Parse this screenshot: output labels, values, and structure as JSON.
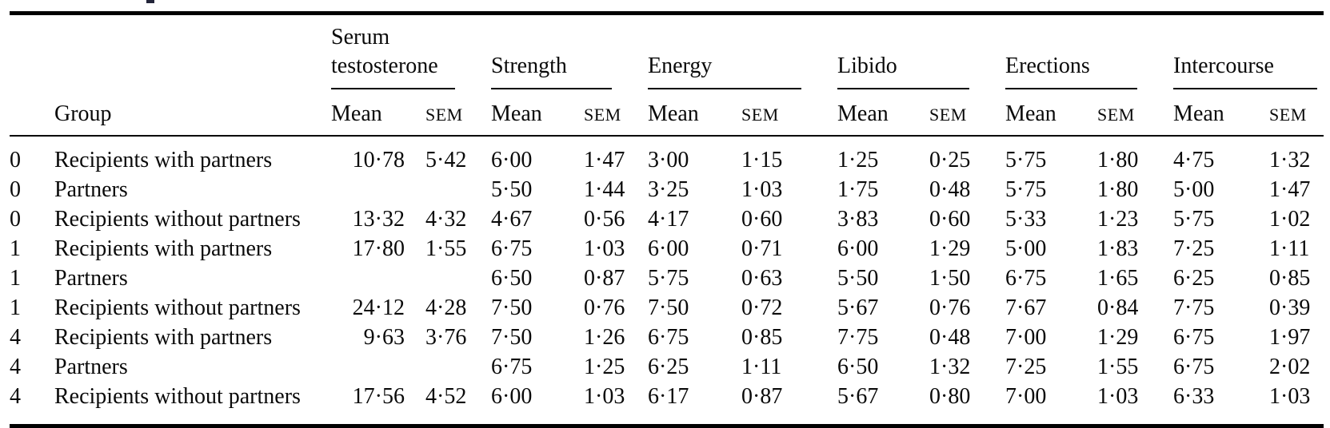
{
  "table": {
    "group_col": "Group",
    "sub": {
      "mean": "Mean",
      "sem": "SEM"
    },
    "groups": [
      {
        "label": "Serum testosterone"
      },
      {
        "label": "Strength"
      },
      {
        "label": "Energy"
      },
      {
        "label": "Libido"
      },
      {
        "label": "Erections"
      },
      {
        "label": "Intercourse"
      }
    ],
    "rows": [
      {
        "code": "0",
        "label": "Recipients with partners",
        "values": [
          "10·78",
          "5·42",
          "6·00",
          "1·47",
          "3·00",
          "1·15",
          "1·25",
          "0·25",
          "5·75",
          "1·80",
          "4·75",
          "1·32"
        ]
      },
      {
        "code": "0",
        "label": "Partners",
        "values": [
          "",
          "",
          "5·50",
          "1·44",
          "3·25",
          "1·03",
          "1·75",
          "0·48",
          "5·75",
          "1·80",
          "5·00",
          "1·47"
        ]
      },
      {
        "code": "0",
        "label": "Recipients without partners",
        "values": [
          "13·32",
          "4·32",
          "4·67",
          "0·56",
          "4·17",
          "0·60",
          "3·83",
          "0·60",
          "5·33",
          "1·23",
          "5·75",
          "1·02"
        ]
      },
      {
        "code": "1",
        "label": "Recipients with partners",
        "values": [
          "17·80",
          "1·55",
          "6·75",
          "1·03",
          "6·00",
          "0·71",
          "6·00",
          "1·29",
          "5·00",
          "1·83",
          "7·25",
          "1·11"
        ]
      },
      {
        "code": "1",
        "label": "Partners",
        "values": [
          "",
          "",
          "6·50",
          "0·87",
          "5·75",
          "0·63",
          "5·50",
          "1·50",
          "6·75",
          "1·65",
          "6·25",
          "0·85"
        ]
      },
      {
        "code": "1",
        "label": "Recipients without partners",
        "values": [
          "24·12",
          "4·28",
          "7·50",
          "0·76",
          "7·50",
          "0·72",
          "5·67",
          "0·76",
          "7·67",
          "0·84",
          "7·75",
          "0·39"
        ]
      },
      {
        "code": "4",
        "label": "Recipients with partners",
        "values": [
          "9·63",
          "3·76",
          "7·50",
          "1·26",
          "6·75",
          "0·85",
          "7·75",
          "0·48",
          "7·00",
          "1·29",
          "6·75",
          "1·97"
        ]
      },
      {
        "code": "4",
        "label": "Partners",
        "values": [
          "",
          "",
          "6·75",
          "1·25",
          "6·25",
          "1·11",
          "6·50",
          "1·32",
          "7·25",
          "1·55",
          "6·75",
          "2·02"
        ]
      },
      {
        "code": "4",
        "label": "Recipients without partners",
        "values": [
          "17·56",
          "4·52",
          "6·00",
          "1·03",
          "6·17",
          "0·87",
          "5·67",
          "0·80",
          "7·00",
          "1·03",
          "6·33",
          "1·03"
        ]
      }
    ]
  }
}
